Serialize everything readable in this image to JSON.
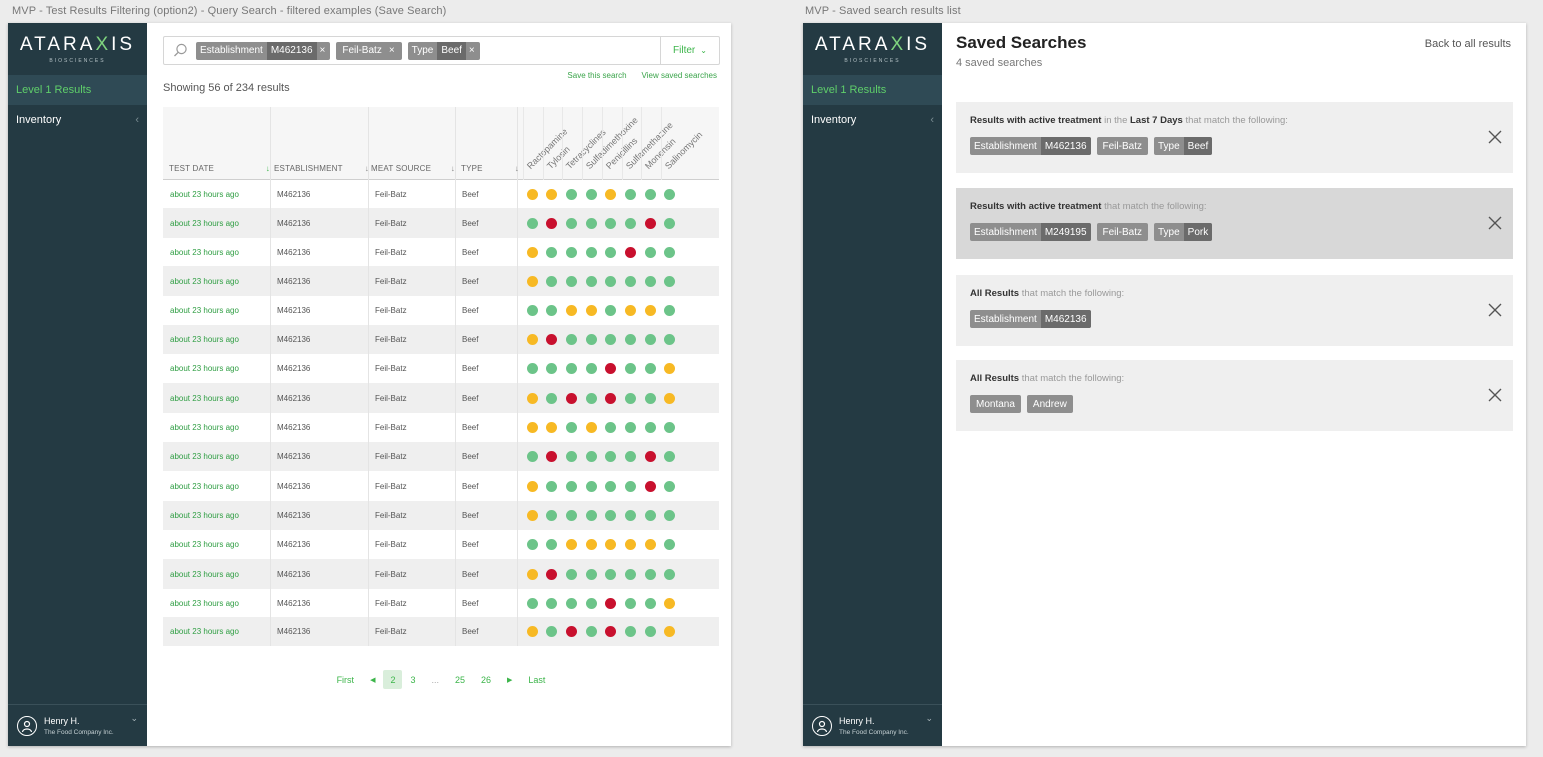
{
  "frames": {
    "left_title": "MVP - Test Results Filtering  (option2) - Query Search - filtered examples (Save Search)",
    "right_title": "MVP - Saved search results list"
  },
  "brand": {
    "logo_pre": "ATARA",
    "logo_x": "X",
    "logo_post": "IS",
    "logo_sub": "BIOSCIENCES"
  },
  "sidebar": {
    "items": [
      {
        "label": "Level 1 Results"
      },
      {
        "label": "Inventory"
      }
    ],
    "user": {
      "name": "Henry H.",
      "company": "The Food Company Inc."
    }
  },
  "search": {
    "chips": [
      {
        "key": "Establishment",
        "value": "M462136"
      },
      {
        "key": "",
        "value": "Feil-Batz"
      },
      {
        "key": "Type",
        "value": "Beef"
      }
    ],
    "filter_label": "Filter",
    "save_link": "Save this search",
    "view_link": "View saved searches",
    "showing": "Showing 56 of 234 results"
  },
  "table": {
    "headers": [
      "Test Date",
      "Establishment",
      "Meat Source",
      "Type"
    ],
    "tests": [
      "Ractopamine",
      "Tylosin",
      "Tetracyclines",
      "Sulfadimethoxine",
      "Penicillins",
      "Sulfamethazine",
      "Monensin",
      "Salinomycin"
    ],
    "rows": [
      {
        "date": "about 23 hours ago",
        "est": "M462136",
        "meat": "Feil-Batz",
        "type": "Beef",
        "r": "yyggyggg"
      },
      {
        "date": "about 23 hours ago",
        "est": "M462136",
        "meat": "Feil-Batz",
        "type": "Beef",
        "r": "grggggrg"
      },
      {
        "date": "about 23 hours ago",
        "est": "M462136",
        "meat": "Feil-Batz",
        "type": "Beef",
        "r": "yggggrgg"
      },
      {
        "date": "about 23 hours ago",
        "est": "M462136",
        "meat": "Feil-Batz",
        "type": "Beef",
        "r": "yggggggg"
      },
      {
        "date": "about 23 hours ago",
        "est": "M462136",
        "meat": "Feil-Batz",
        "type": "Beef",
        "r": "ggyygyyg"
      },
      {
        "date": "about 23 hours ago",
        "est": "M462136",
        "meat": "Feil-Batz",
        "type": "Beef",
        "r": "yrgggggg"
      },
      {
        "date": "about 23 hours ago",
        "est": "M462136",
        "meat": "Feil-Batz",
        "type": "Beef",
        "r": "ggggrggy"
      },
      {
        "date": "about 23 hours ago",
        "est": "M462136",
        "meat": "Feil-Batz",
        "type": "Beef",
        "r": "ygrgrggy"
      },
      {
        "date": "about 23 hours ago",
        "est": "M462136",
        "meat": "Feil-Batz",
        "type": "Beef",
        "r": "yygygggg"
      },
      {
        "date": "about 23 hours ago",
        "est": "M462136",
        "meat": "Feil-Batz",
        "type": "Beef",
        "r": "grggggrg"
      },
      {
        "date": "about 23 hours ago",
        "est": "M462136",
        "meat": "Feil-Batz",
        "type": "Beef",
        "r": "ygggggrg"
      },
      {
        "date": "about 23 hours ago",
        "est": "M462136",
        "meat": "Feil-Batz",
        "type": "Beef",
        "r": "yggggggg"
      },
      {
        "date": "about 23 hours ago",
        "est": "M462136",
        "meat": "Feil-Batz",
        "type": "Beef",
        "r": "ggyyyyyg"
      },
      {
        "date": "about 23 hours ago",
        "est": "M462136",
        "meat": "Feil-Batz",
        "type": "Beef",
        "r": "yrgggggg"
      },
      {
        "date": "about 23 hours ago",
        "est": "M462136",
        "meat": "Feil-Batz",
        "type": "Beef",
        "r": "ggggrggy"
      },
      {
        "date": "about 23 hours ago",
        "est": "M462136",
        "meat": "Feil-Batz",
        "type": "Beef",
        "r": "ygrgrggy"
      }
    ]
  },
  "pager": {
    "first": "First",
    "pages": [
      "2",
      "3",
      "...",
      "25",
      "26"
    ],
    "current": "2",
    "last": "Last"
  },
  "saved": {
    "title": "Saved Searches",
    "count": "4 saved searches",
    "back": "Back to all results",
    "cards": [
      {
        "lead": "Results with active treatment",
        "mid": " in the ",
        "bold2": "Last 7 Days",
        "tail": " that match the following:",
        "chips": [
          {
            "key": "Establishment",
            "value": "M462136"
          },
          {
            "key": "",
            "value": "Feil-Batz"
          },
          {
            "key": "Type",
            "value": "Beef"
          }
        ]
      },
      {
        "lead": "Results with active treatment",
        "mid": "",
        "bold2": "",
        "tail": " that match the following:",
        "chips": [
          {
            "key": "Establishment",
            "value": "M249195"
          },
          {
            "key": "",
            "value": "Feil-Batz"
          },
          {
            "key": "Type",
            "value": "Pork"
          }
        ]
      },
      {
        "lead": "All Results",
        "mid": "",
        "bold2": "",
        "tail": " that match the following:",
        "chips": [
          {
            "key": "Establishment",
            "value": "M462136"
          }
        ]
      },
      {
        "lead": "All Results",
        "mid": "",
        "bold2": "",
        "tail": " that match the following:",
        "chips": [
          {
            "key": "",
            "value": "Montana"
          },
          {
            "key": "",
            "value": "Andrew"
          }
        ]
      }
    ]
  },
  "colors": {
    "green": "#6cc489",
    "yellow": "#f7b924",
    "red": "#c8102e",
    "accent": "#3cb54a",
    "sidebar": "#243a43"
  }
}
